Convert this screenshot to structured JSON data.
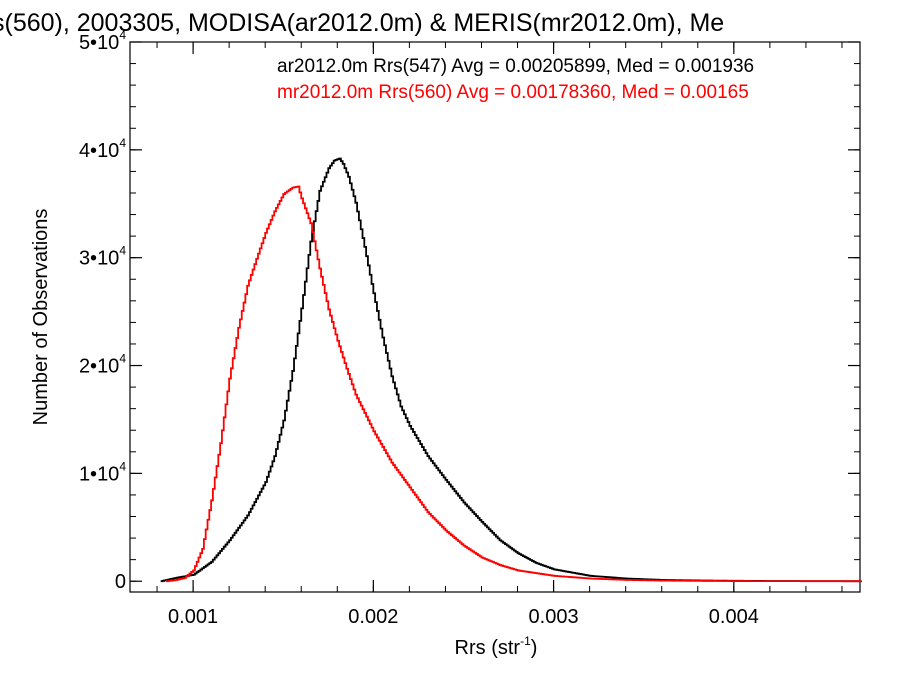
{
  "chart_data": {
    "type": "line",
    "title": "s(560), 2003305, MODISA(ar2012.0m) & MERIS(mr2012.0m), Me",
    "xlabel_main": "Rrs (str",
    "xlabel_sup": "-1",
    "xlabel_close": ")",
    "ylabel": "Number of Observations",
    "xlim": [
      0.00065,
      0.0047
    ],
    "ylim": [
      -1000,
      50000
    ],
    "x_ticks": [
      {
        "value": 0.001,
        "label": "0.001"
      },
      {
        "value": 0.002,
        "label": "0.002"
      },
      {
        "value": 0.003,
        "label": "0.003"
      },
      {
        "value": 0.004,
        "label": "0.004"
      }
    ],
    "y_ticks": [
      {
        "value": 0,
        "base": "0",
        "exp": ""
      },
      {
        "value": 10000,
        "base": "1•10",
        "exp": "4"
      },
      {
        "value": 20000,
        "base": "2•10",
        "exp": "4"
      },
      {
        "value": 30000,
        "base": "3•10",
        "exp": "4"
      },
      {
        "value": 40000,
        "base": "4•10",
        "exp": "4"
      },
      {
        "value": 50000,
        "base": "5•10",
        "exp": "4"
      }
    ],
    "grid": false,
    "legend_position": "top-right",
    "series": [
      {
        "name": "ar2012.0m Rrs(547) Avg = 0.00205899, Med = 0.001936",
        "color": "#000000",
        "x": [
          0.00082,
          0.0009,
          0.001,
          0.0011,
          0.0012,
          0.0013,
          0.0014,
          0.00145,
          0.0015,
          0.00155,
          0.0016,
          0.00165,
          0.0017,
          0.00175,
          0.00178,
          0.00181,
          0.00183,
          0.00186,
          0.0019,
          0.00195,
          0.002,
          0.00205,
          0.0021,
          0.00215,
          0.0022,
          0.0023,
          0.0024,
          0.0025,
          0.0026,
          0.0027,
          0.0028,
          0.0029,
          0.003,
          0.0032,
          0.0034,
          0.0036,
          0.0038,
          0.004,
          0.0042,
          0.0044,
          0.0046,
          0.0047
        ],
        "values": [
          0,
          300,
          600,
          1800,
          3800,
          6100,
          9200,
          11600,
          14900,
          19500,
          25300,
          31500,
          36200,
          38300,
          39000,
          39200,
          38700,
          37500,
          35100,
          31000,
          26700,
          22600,
          19000,
          16200,
          14400,
          11600,
          9400,
          7300,
          5500,
          3800,
          2600,
          1700,
          1100,
          500,
          250,
          120,
          70,
          40,
          20,
          10,
          5,
          0
        ]
      },
      {
        "name": "mr2012.0m Rrs(560) Avg = 0.00178360, Med = 0.00165",
        "color": "#ff0000",
        "x": [
          0.00085,
          0.0009,
          0.00095,
          0.001,
          0.00105,
          0.0011,
          0.00115,
          0.0012,
          0.00125,
          0.0013,
          0.00135,
          0.0014,
          0.00145,
          0.0015,
          0.00155,
          0.00158,
          0.0016,
          0.00165,
          0.0017,
          0.00175,
          0.0018,
          0.00185,
          0.0019,
          0.002,
          0.0021,
          0.0022,
          0.0023,
          0.0024,
          0.0025,
          0.0026,
          0.0027,
          0.0028,
          0.003,
          0.0032,
          0.0034,
          0.0036,
          0.0038,
          0.004,
          0.0042,
          0.0044,
          0.0046,
          0.0047
        ],
        "values": [
          0,
          100,
          300,
          1000,
          3000,
          7500,
          12800,
          18800,
          23500,
          27400,
          29900,
          32300,
          34300,
          35900,
          36500,
          36600,
          35500,
          33200,
          29000,
          25200,
          22300,
          19700,
          17300,
          13900,
          11000,
          8700,
          6400,
          4700,
          3300,
          2200,
          1500,
          1000,
          500,
          250,
          120,
          60,
          30,
          15,
          8,
          4,
          2,
          0
        ]
      }
    ]
  }
}
